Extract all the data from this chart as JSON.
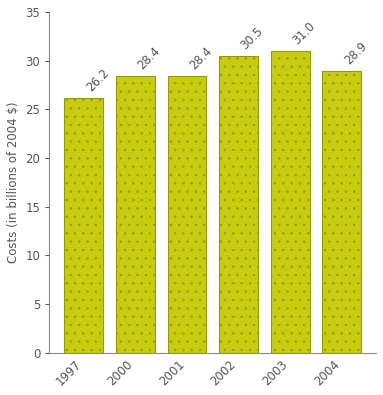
{
  "categories": [
    "1997",
    "2000",
    "2001",
    "2002",
    "2003",
    "2004"
  ],
  "values": [
    26.2,
    28.4,
    28.4,
    30.5,
    31.0,
    28.9
  ],
  "bar_color": "#c8cc10",
  "bar_edge_color": "#999900",
  "hatch_color": "#a8aa00",
  "ylabel": "Costs (in billions of 2004 $)",
  "ylim": [
    0,
    35
  ],
  "yticks": [
    0,
    5,
    10,
    15,
    20,
    25,
    30,
    35
  ],
  "label_color": "#555555",
  "label_fontsize": 8.5,
  "tick_fontsize": 8.5,
  "ylabel_fontsize": 8.5,
  "bar_width": 0.75,
  "background_color": "#ffffff"
}
